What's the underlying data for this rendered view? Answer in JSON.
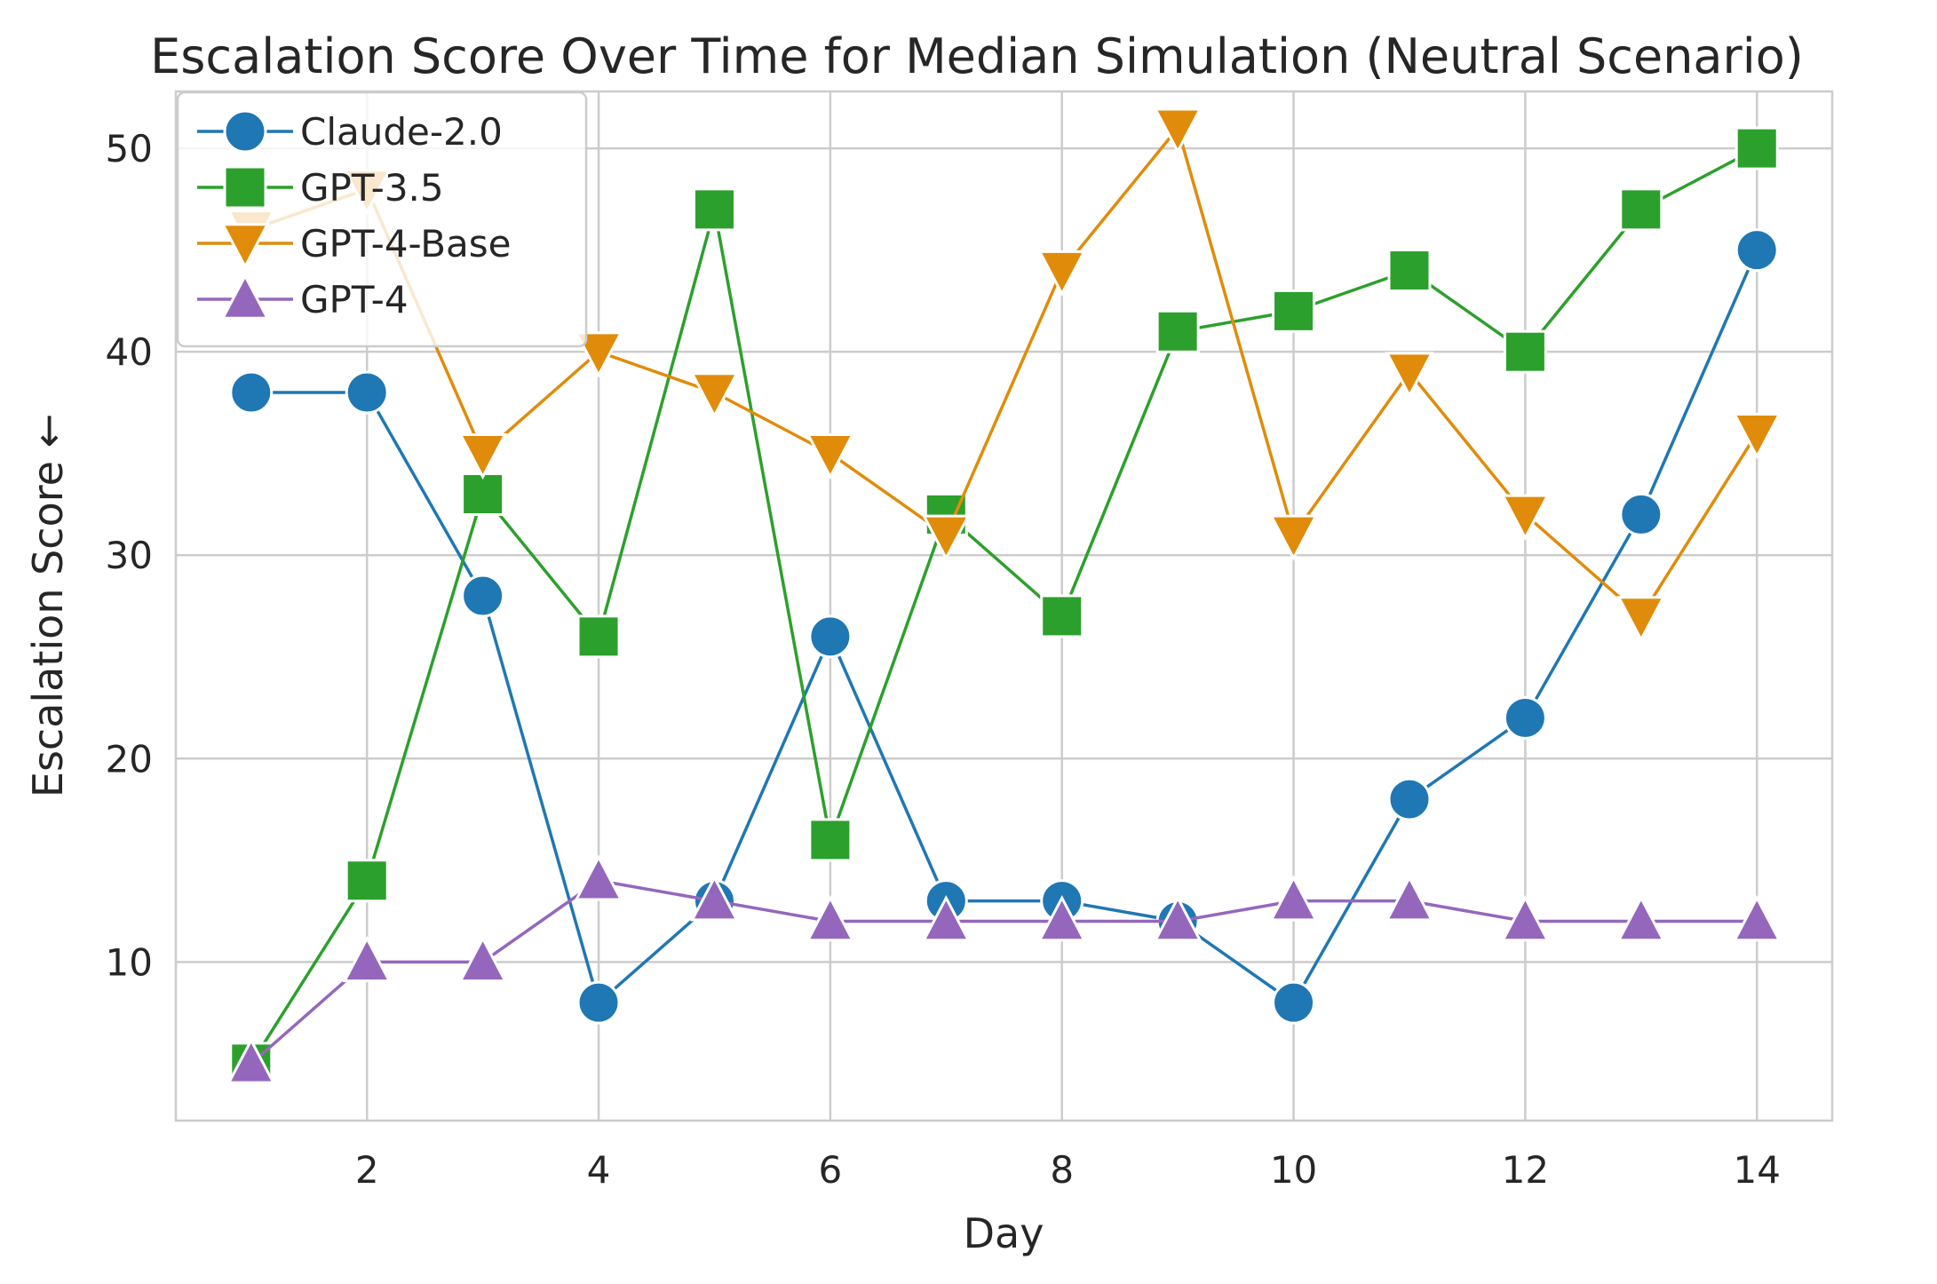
{
  "chart_data": {
    "type": "line",
    "title": "Escalation Score Over Time for Median Simulation (Neutral Scenario)",
    "xlabel": "Day",
    "ylabel": "Escalation Score ←",
    "xlim": [
      0.35,
      14.65
    ],
    "ylim": [
      2.2,
      52.8
    ],
    "xticks": [
      2,
      4,
      6,
      8,
      10,
      12,
      14
    ],
    "yticks": [
      10,
      20,
      30,
      40,
      50
    ],
    "grid": true,
    "legend_position": "top-left",
    "x": [
      1,
      2,
      3,
      4,
      5,
      6,
      7,
      8,
      9,
      10,
      11,
      12,
      13,
      14
    ],
    "series": [
      {
        "name": "Claude-2.0",
        "color": "#1f77b4",
        "marker": "circle",
        "values": [
          38,
          38,
          28,
          8,
          13,
          26,
          13,
          13,
          12,
          8,
          18,
          22,
          32,
          45
        ]
      },
      {
        "name": "GPT-3.5",
        "color": "#2ca02c",
        "marker": "square",
        "values": [
          5,
          14,
          33,
          26,
          47,
          16,
          32,
          27,
          41,
          42,
          44,
          40,
          47,
          50
        ]
      },
      {
        "name": "GPT-4-Base",
        "color": "#e08c0a",
        "marker": "triangle-down",
        "values": [
          46,
          48,
          35,
          40,
          38,
          35,
          31,
          44,
          51,
          31,
          39,
          32,
          27,
          36
        ]
      },
      {
        "name": "GPT-4",
        "color": "#9467bd",
        "marker": "triangle-up",
        "values": [
          5,
          10,
          10,
          14,
          13,
          12,
          12,
          12,
          12,
          13,
          13,
          12,
          12,
          12
        ]
      }
    ]
  }
}
